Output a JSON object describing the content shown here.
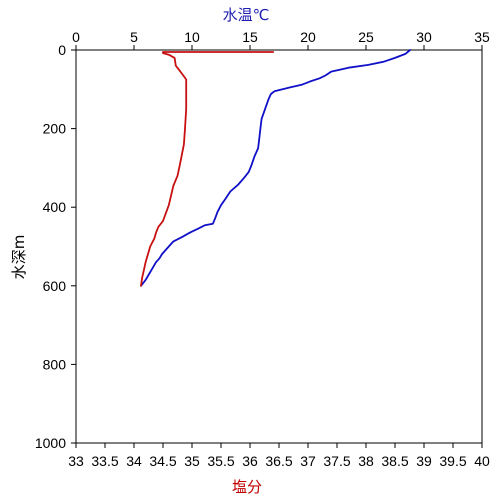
{
  "chart_data": {
    "type": "line",
    "top_axis": {
      "label": "水温℃",
      "color": "#1f1fb4",
      "range": [
        0,
        35
      ],
      "ticks": [
        "0",
        "5",
        "10",
        "15",
        "20",
        "25",
        "30",
        "35"
      ]
    },
    "bottom_axis": {
      "label": "塩分",
      "color": "#c00000",
      "range": [
        33,
        40
      ],
      "ticks": [
        "33",
        "33.5",
        "34",
        "34.5",
        "35",
        "35.5",
        "36",
        "36.5",
        "37",
        "37.5",
        "38",
        "38.5",
        "39",
        "39.5",
        "40"
      ]
    },
    "left_axis": {
      "label": "水深m",
      "range": [
        0,
        1000
      ],
      "inverted": true,
      "ticks": [
        "0",
        "200",
        "400",
        "600",
        "800",
        "1000"
      ]
    },
    "series": [
      {
        "key": "temperature",
        "axis": "top",
        "color": "#1010c8",
        "points": [
          [
            28.8,
            0
          ],
          [
            28.4,
            10
          ],
          [
            27.5,
            20
          ],
          [
            26.5,
            30
          ],
          [
            25.2,
            38
          ],
          [
            23.5,
            45
          ],
          [
            22,
            55
          ],
          [
            21.5,
            65
          ],
          [
            21,
            72
          ],
          [
            20.2,
            80
          ],
          [
            19.5,
            88
          ],
          [
            18.5,
            95
          ],
          [
            17.8,
            100
          ],
          [
            17.1,
            105
          ],
          [
            16.8,
            112
          ],
          [
            16.6,
            125
          ],
          [
            16.3,
            150
          ],
          [
            16,
            175
          ],
          [
            15.9,
            200
          ],
          [
            15.8,
            225
          ],
          [
            15.7,
            250
          ],
          [
            15.4,
            270
          ],
          [
            15.1,
            295
          ],
          [
            14.9,
            310
          ],
          [
            14.5,
            325
          ],
          [
            14,
            342
          ],
          [
            13.3,
            360
          ],
          [
            12.9,
            378
          ],
          [
            12.5,
            395
          ],
          [
            12.2,
            412
          ],
          [
            12,
            428
          ],
          [
            11.8,
            442
          ],
          [
            11.1,
            446
          ],
          [
            10.5,
            455
          ],
          [
            9.8,
            465
          ],
          [
            9.2,
            475
          ],
          [
            8.4,
            487
          ],
          [
            8,
            500
          ],
          [
            7.7,
            510
          ],
          [
            7.4,
            520
          ],
          [
            7.2,
            530
          ],
          [
            6.9,
            540
          ],
          [
            6.6,
            555
          ],
          [
            6.3,
            570
          ],
          [
            6,
            585
          ],
          [
            5.6,
            600
          ]
        ]
      },
      {
        "key": "salinity",
        "axis": "bottom",
        "color": "#c81010",
        "points": [
          [
            36.4,
            5
          ],
          [
            34.5,
            5
          ],
          [
            34.5,
            8
          ],
          [
            34.6,
            12
          ],
          [
            34.7,
            20
          ],
          [
            34.72,
            40
          ],
          [
            34.8,
            55
          ],
          [
            34.85,
            65
          ],
          [
            34.9,
            75
          ],
          [
            34.9,
            100
          ],
          [
            34.9,
            150
          ],
          [
            34.88,
            200
          ],
          [
            34.86,
            240
          ],
          [
            34.82,
            270
          ],
          [
            34.78,
            300
          ],
          [
            34.75,
            320
          ],
          [
            34.68,
            345
          ],
          [
            34.64,
            370
          ],
          [
            34.6,
            395
          ],
          [
            34.55,
            415
          ],
          [
            34.5,
            435
          ],
          [
            34.42,
            450
          ],
          [
            34.38,
            465
          ],
          [
            34.35,
            480
          ],
          [
            34.28,
            500
          ],
          [
            34.24,
            520
          ],
          [
            34.2,
            540
          ],
          [
            34.17,
            560
          ],
          [
            34.14,
            580
          ],
          [
            34.12,
            600
          ]
        ]
      }
    ]
  }
}
